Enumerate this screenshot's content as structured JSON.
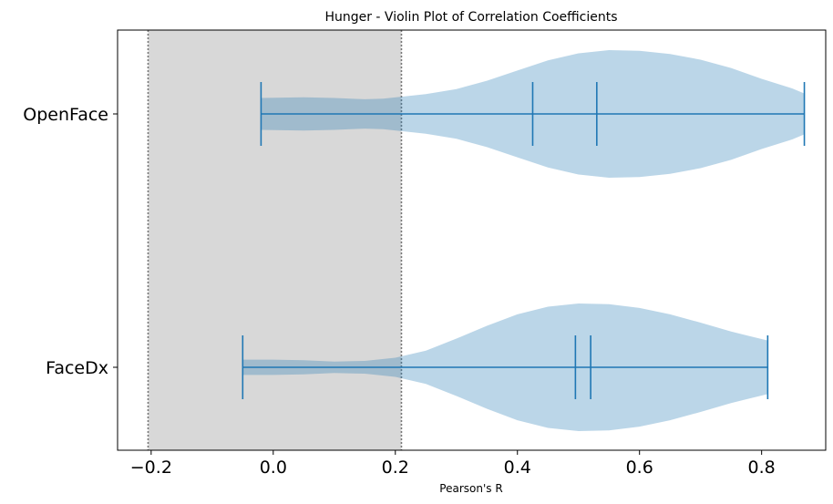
{
  "chart_data": {
    "type": "violin",
    "orientation": "horizontal",
    "title": "Hunger - Violin Plot of Correlation Coefficients",
    "xlabel": "Pearson's R",
    "ylabel": "",
    "xlim": [
      -0.255,
      0.905
    ],
    "xticks": [
      -0.2,
      0.0,
      0.2,
      0.4,
      0.6,
      0.8
    ],
    "xtick_labels": [
      "−0.2",
      "0.0",
      "0.2",
      "0.4",
      "0.6",
      "0.8"
    ],
    "categories": [
      "OpenFace",
      "FaceDx"
    ],
    "shaded_region": {
      "from": -0.205,
      "to": 0.21,
      "color": "#d8d8d8",
      "edge_style": "dotted"
    },
    "series": [
      {
        "category": "OpenFace",
        "min": -0.02,
        "max": 0.87,
        "mean": 0.425,
        "median": 0.53,
        "density": [
          [
            -0.02,
            0.25
          ],
          [
            0.05,
            0.26
          ],
          [
            0.1,
            0.25
          ],
          [
            0.15,
            0.23
          ],
          [
            0.18,
            0.24
          ],
          [
            0.21,
            0.27
          ],
          [
            0.25,
            0.31
          ],
          [
            0.3,
            0.39
          ],
          [
            0.35,
            0.52
          ],
          [
            0.4,
            0.68
          ],
          [
            0.45,
            0.84
          ],
          [
            0.5,
            0.95
          ],
          [
            0.55,
            1.0
          ],
          [
            0.6,
            0.99
          ],
          [
            0.65,
            0.94
          ],
          [
            0.7,
            0.85
          ],
          [
            0.75,
            0.72
          ],
          [
            0.8,
            0.55
          ],
          [
            0.85,
            0.4
          ],
          [
            0.87,
            0.32
          ]
        ]
      },
      {
        "category": "FaceDx",
        "min": -0.05,
        "max": 0.81,
        "mean": 0.495,
        "median": 0.52,
        "density": [
          [
            -0.05,
            0.12
          ],
          [
            0.0,
            0.12
          ],
          [
            0.05,
            0.11
          ],
          [
            0.1,
            0.09
          ],
          [
            0.15,
            0.1
          ],
          [
            0.2,
            0.15
          ],
          [
            0.25,
            0.26
          ],
          [
            0.3,
            0.45
          ],
          [
            0.35,
            0.65
          ],
          [
            0.4,
            0.83
          ],
          [
            0.45,
            0.95
          ],
          [
            0.5,
            1.0
          ],
          [
            0.55,
            0.99
          ],
          [
            0.6,
            0.93
          ],
          [
            0.65,
            0.83
          ],
          [
            0.7,
            0.7
          ],
          [
            0.75,
            0.56
          ],
          [
            0.78,
            0.49
          ],
          [
            0.81,
            0.42
          ]
        ]
      }
    ],
    "colors": {
      "violin_fill": "#1f77b4",
      "lines": "#1f77b4",
      "axes": "#000000"
    },
    "grid": false
  }
}
